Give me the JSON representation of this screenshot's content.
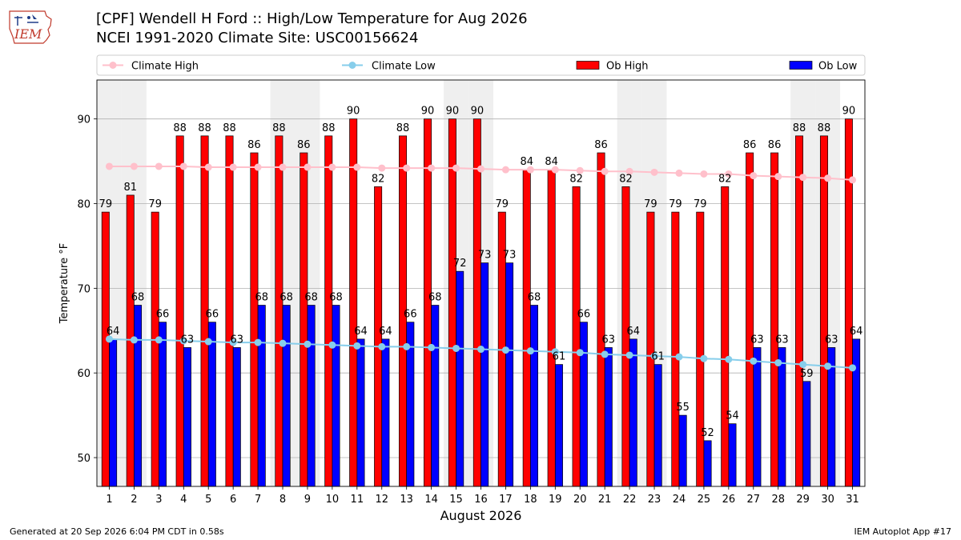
{
  "header": {
    "title": "[CPF] Wendell H Ford :: High/Low Temperature for Aug 2026",
    "subtitle": "NCEI 1991-2020 Climate Site: USC00156624",
    "logo_text": "IEM"
  },
  "footer": {
    "generated": "Generated at 20 Sep 2026 6:04 PM CDT in 0.58s",
    "app": "IEM Autoplot App #17"
  },
  "colors": {
    "ob_high": "#ff0000",
    "ob_low": "#0000ff",
    "climate_high": "#ffc0cb",
    "climate_low": "#87ceeb",
    "weekend_shade": "#efefef"
  },
  "chart_data": {
    "type": "bar",
    "xlabel": "August 2026",
    "ylabel": "Temperature °F",
    "ylim": [
      46.6,
      94.6
    ],
    "yticks": [
      50,
      60,
      70,
      80,
      90
    ],
    "grid": "horizontal",
    "legend_position": "top",
    "weekend_days": [
      1,
      2,
      8,
      9,
      15,
      16,
      22,
      23,
      29,
      30
    ],
    "categories": [
      "1",
      "2",
      "3",
      "4",
      "5",
      "6",
      "7",
      "8",
      "9",
      "10",
      "11",
      "12",
      "13",
      "14",
      "15",
      "16",
      "17",
      "18",
      "19",
      "20",
      "21",
      "22",
      "23",
      "24",
      "25",
      "26",
      "27",
      "28",
      "29",
      "30",
      "31"
    ],
    "series": [
      {
        "name": "Ob High",
        "type": "bar",
        "values": [
          79,
          81,
          79,
          88,
          88,
          88,
          86,
          88,
          86,
          88,
          90,
          82,
          88,
          90,
          90,
          90,
          79,
          84,
          84,
          82,
          86,
          82,
          79,
          79,
          79,
          82,
          86,
          86,
          88,
          88,
          90
        ]
      },
      {
        "name": "Ob Low",
        "type": "bar",
        "values": [
          64,
          68,
          66,
          63,
          66,
          63,
          68,
          68,
          68,
          68,
          64,
          64,
          66,
          68,
          72,
          73,
          73,
          68,
          61,
          66,
          63,
          64,
          61,
          55,
          52,
          54,
          63,
          63,
          59,
          63,
          64
        ]
      },
      {
        "name": "Climate High",
        "type": "line",
        "values": [
          84.4,
          84.4,
          84.4,
          84.4,
          84.3,
          84.3,
          84.3,
          84.3,
          84.3,
          84.3,
          84.3,
          84.2,
          84.2,
          84.2,
          84.2,
          84.1,
          84.0,
          84.0,
          84.0,
          83.9,
          83.8,
          83.8,
          83.7,
          83.6,
          83.5,
          83.5,
          83.3,
          83.2,
          83.1,
          83.0,
          82.8
        ]
      },
      {
        "name": "Climate Low",
        "type": "line",
        "values": [
          64.0,
          63.9,
          63.9,
          63.8,
          63.7,
          63.6,
          63.6,
          63.5,
          63.4,
          63.3,
          63.2,
          63.1,
          63.1,
          63.0,
          62.9,
          62.8,
          62.7,
          62.6,
          62.5,
          62.4,
          62.2,
          62.1,
          62.0,
          61.9,
          61.7,
          61.6,
          61.4,
          61.2,
          61.0,
          60.8,
          60.6
        ]
      }
    ]
  }
}
